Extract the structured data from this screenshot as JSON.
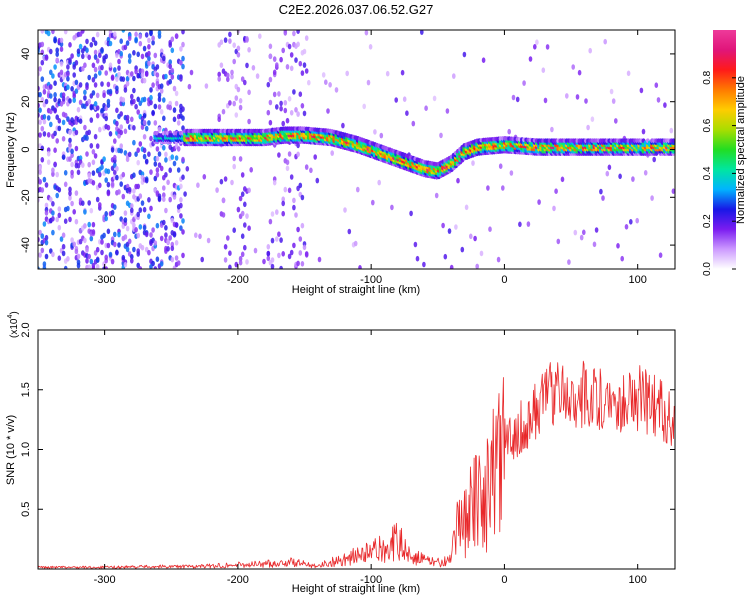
{
  "figure": {
    "title": "C2E2.2026.037.06.52.G27"
  },
  "chart_data": [
    {
      "type": "heatmap",
      "xlabel": "Height of straight line (km)",
      "ylabel": "Frequency (Hz)",
      "xlim": [
        -350,
        128
      ],
      "ylim": [
        -50,
        50
      ],
      "xticks": [
        -300,
        -200,
        -100,
        0,
        100
      ],
      "yticks": [
        -40,
        -20,
        0,
        20,
        40
      ],
      "colorbar": {
        "label": "Normalized spectral amplitude",
        "range": [
          0,
          1
        ],
        "ticks": [
          "0.0",
          "0.2",
          "0.4",
          "0.6",
          "0.8"
        ],
        "colors": [
          "#ffffff",
          "#cc99ff",
          "#7a1cf0",
          "#1818e6",
          "#00b4ff",
          "#00e6a0",
          "#22dd22",
          "#aadd00",
          "#ffcc00",
          "#ff7a00",
          "#ff1a1a",
          "#e0157a",
          "#ee3a9a"
        ]
      },
      "ridge": {
        "x": [
          -235,
          -220,
          -200,
          -180,
          -165,
          -150,
          -130,
          -110,
          -95,
          -80,
          -70,
          -60,
          -50,
          -40,
          -30,
          -20,
          0,
          25,
          50,
          75,
          100,
          128
        ],
        "freq": [
          5,
          5,
          5,
          5,
          6,
          6,
          5,
          2,
          -1,
          -4,
          -6,
          -8,
          -9,
          -6,
          -1,
          1,
          2,
          1,
          1,
          1,
          1,
          1
        ]
      }
    },
    {
      "type": "line",
      "xlabel": "Height of straight line (km)",
      "ylabel": "SNR (10 * v/v)",
      "ymultiplier": "(x10",
      "ymultiplier_exp": "4",
      "ymultiplier_close": ")",
      "xlim": [
        -350,
        128
      ],
      "ylim": [
        0,
        2.0
      ],
      "xticks": [
        -300,
        -200,
        -100,
        0,
        100
      ],
      "yticks": [
        "0.5",
        "1.0",
        "1.5",
        "2.0"
      ],
      "color": "#e8282a",
      "envelope": {
        "x": [
          -350,
          -300,
          -260,
          -230,
          -200,
          -180,
          -160,
          -140,
          -120,
          -100,
          -90,
          -80,
          -70,
          -60,
          -50,
          -40,
          -35,
          -30,
          -25,
          -20,
          -15,
          -10,
          -5,
          0,
          10,
          20,
          30,
          40,
          60,
          80,
          100,
          110,
          120,
          128
        ],
        "y": [
          0.02,
          0.02,
          0.03,
          0.03,
          0.05,
          0.06,
          0.08,
          0.04,
          0.12,
          0.2,
          0.25,
          0.33,
          0.18,
          0.1,
          0.08,
          0.1,
          0.4,
          0.6,
          0.7,
          0.62,
          0.8,
          0.95,
          0.96,
          1.1,
          1.2,
          1.3,
          1.5,
          1.55,
          1.5,
          1.45,
          1.48,
          1.42,
          1.35,
          1.3
        ]
      }
    }
  ]
}
